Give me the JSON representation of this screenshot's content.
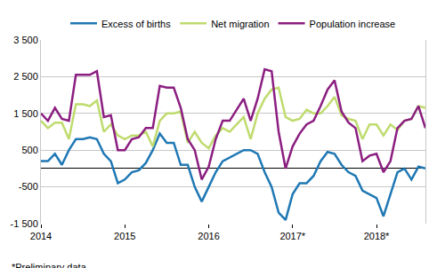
{
  "chart_data": {
    "type": "line",
    "categories": [
      "2014",
      null,
      null,
      null,
      null,
      null,
      null,
      null,
      null,
      null,
      null,
      null,
      "2015",
      null,
      null,
      null,
      null,
      null,
      null,
      null,
      null,
      null,
      null,
      null,
      "2016",
      null,
      null,
      null,
      null,
      null,
      null,
      null,
      null,
      null,
      null,
      null,
      "2017*",
      null,
      null,
      null,
      null,
      null,
      null,
      null,
      null,
      null,
      null,
      null,
      "2018*",
      null,
      null,
      null,
      null,
      null,
      null,
      null
    ],
    "series": [
      {
        "name": "Excess of births",
        "color": "#1f78b4",
        "values": [
          200,
          200,
          400,
          100,
          500,
          800,
          800,
          850,
          800,
          400,
          200,
          -400,
          -300,
          -100,
          -50,
          150,
          500,
          950,
          700,
          700,
          100,
          100,
          -500,
          -900,
          -500,
          -100,
          200,
          300,
          400,
          500,
          500,
          400,
          -100,
          -500,
          -1200,
          -1400,
          -700,
          -400,
          -400,
          -200,
          200,
          450,
          400,
          100,
          -100,
          -200,
          -600,
          -700,
          -800,
          -1300,
          -700,
          -100,
          0,
          -300,
          50,
          0
        ]
      },
      {
        "name": "Net migration",
        "color": "#bfdb6e",
        "values": [
          1300,
          1100,
          1250,
          1250,
          800,
          1750,
          1750,
          1700,
          1850,
          1000,
          1200,
          900,
          800,
          900,
          900,
          1000,
          600,
          1300,
          1500,
          1500,
          1550,
          700,
          1000,
          700,
          550,
          900,
          1100,
          1000,
          1200,
          1400,
          800,
          1500,
          1900,
          2150,
          2200,
          1400,
          1300,
          1350,
          1600,
          1500,
          1500,
          1700,
          1950,
          1450,
          1350,
          1300,
          800,
          1200,
          1200,
          900,
          1200,
          1050,
          1300,
          1350,
          1700,
          1650
        ]
      },
      {
        "name": "Population increase",
        "color": "#8b1e80",
        "values": [
          1500,
          1300,
          1650,
          1350,
          1300,
          2550,
          2550,
          2550,
          2650,
          1400,
          1450,
          500,
          500,
          800,
          850,
          1100,
          1100,
          2250,
          2200,
          2200,
          1650,
          800,
          500,
          -300,
          50,
          800,
          1300,
          1300,
          1600,
          1900,
          1300,
          1900,
          2700,
          2650,
          1000,
          0,
          600,
          950,
          1200,
          1300,
          1700,
          2150,
          2400,
          1550,
          1250,
          1100,
          200,
          350,
          400,
          -100,
          200,
          1100,
          1300,
          1350,
          1700,
          1100
        ]
      }
    ],
    "ylim": [
      -1500,
      3500
    ],
    "yticks": [
      {
        "value": -1500,
        "label": "-1 500"
      },
      -500,
      500,
      {
        "value": 1500,
        "label": "1 500"
      },
      {
        "value": 2500,
        "label": "2 500"
      },
      {
        "value": 3500,
        "label": "3 500"
      }
    ],
    "grid": true,
    "legend": "top",
    "annotations": [
      "*Preliminary data"
    ]
  }
}
